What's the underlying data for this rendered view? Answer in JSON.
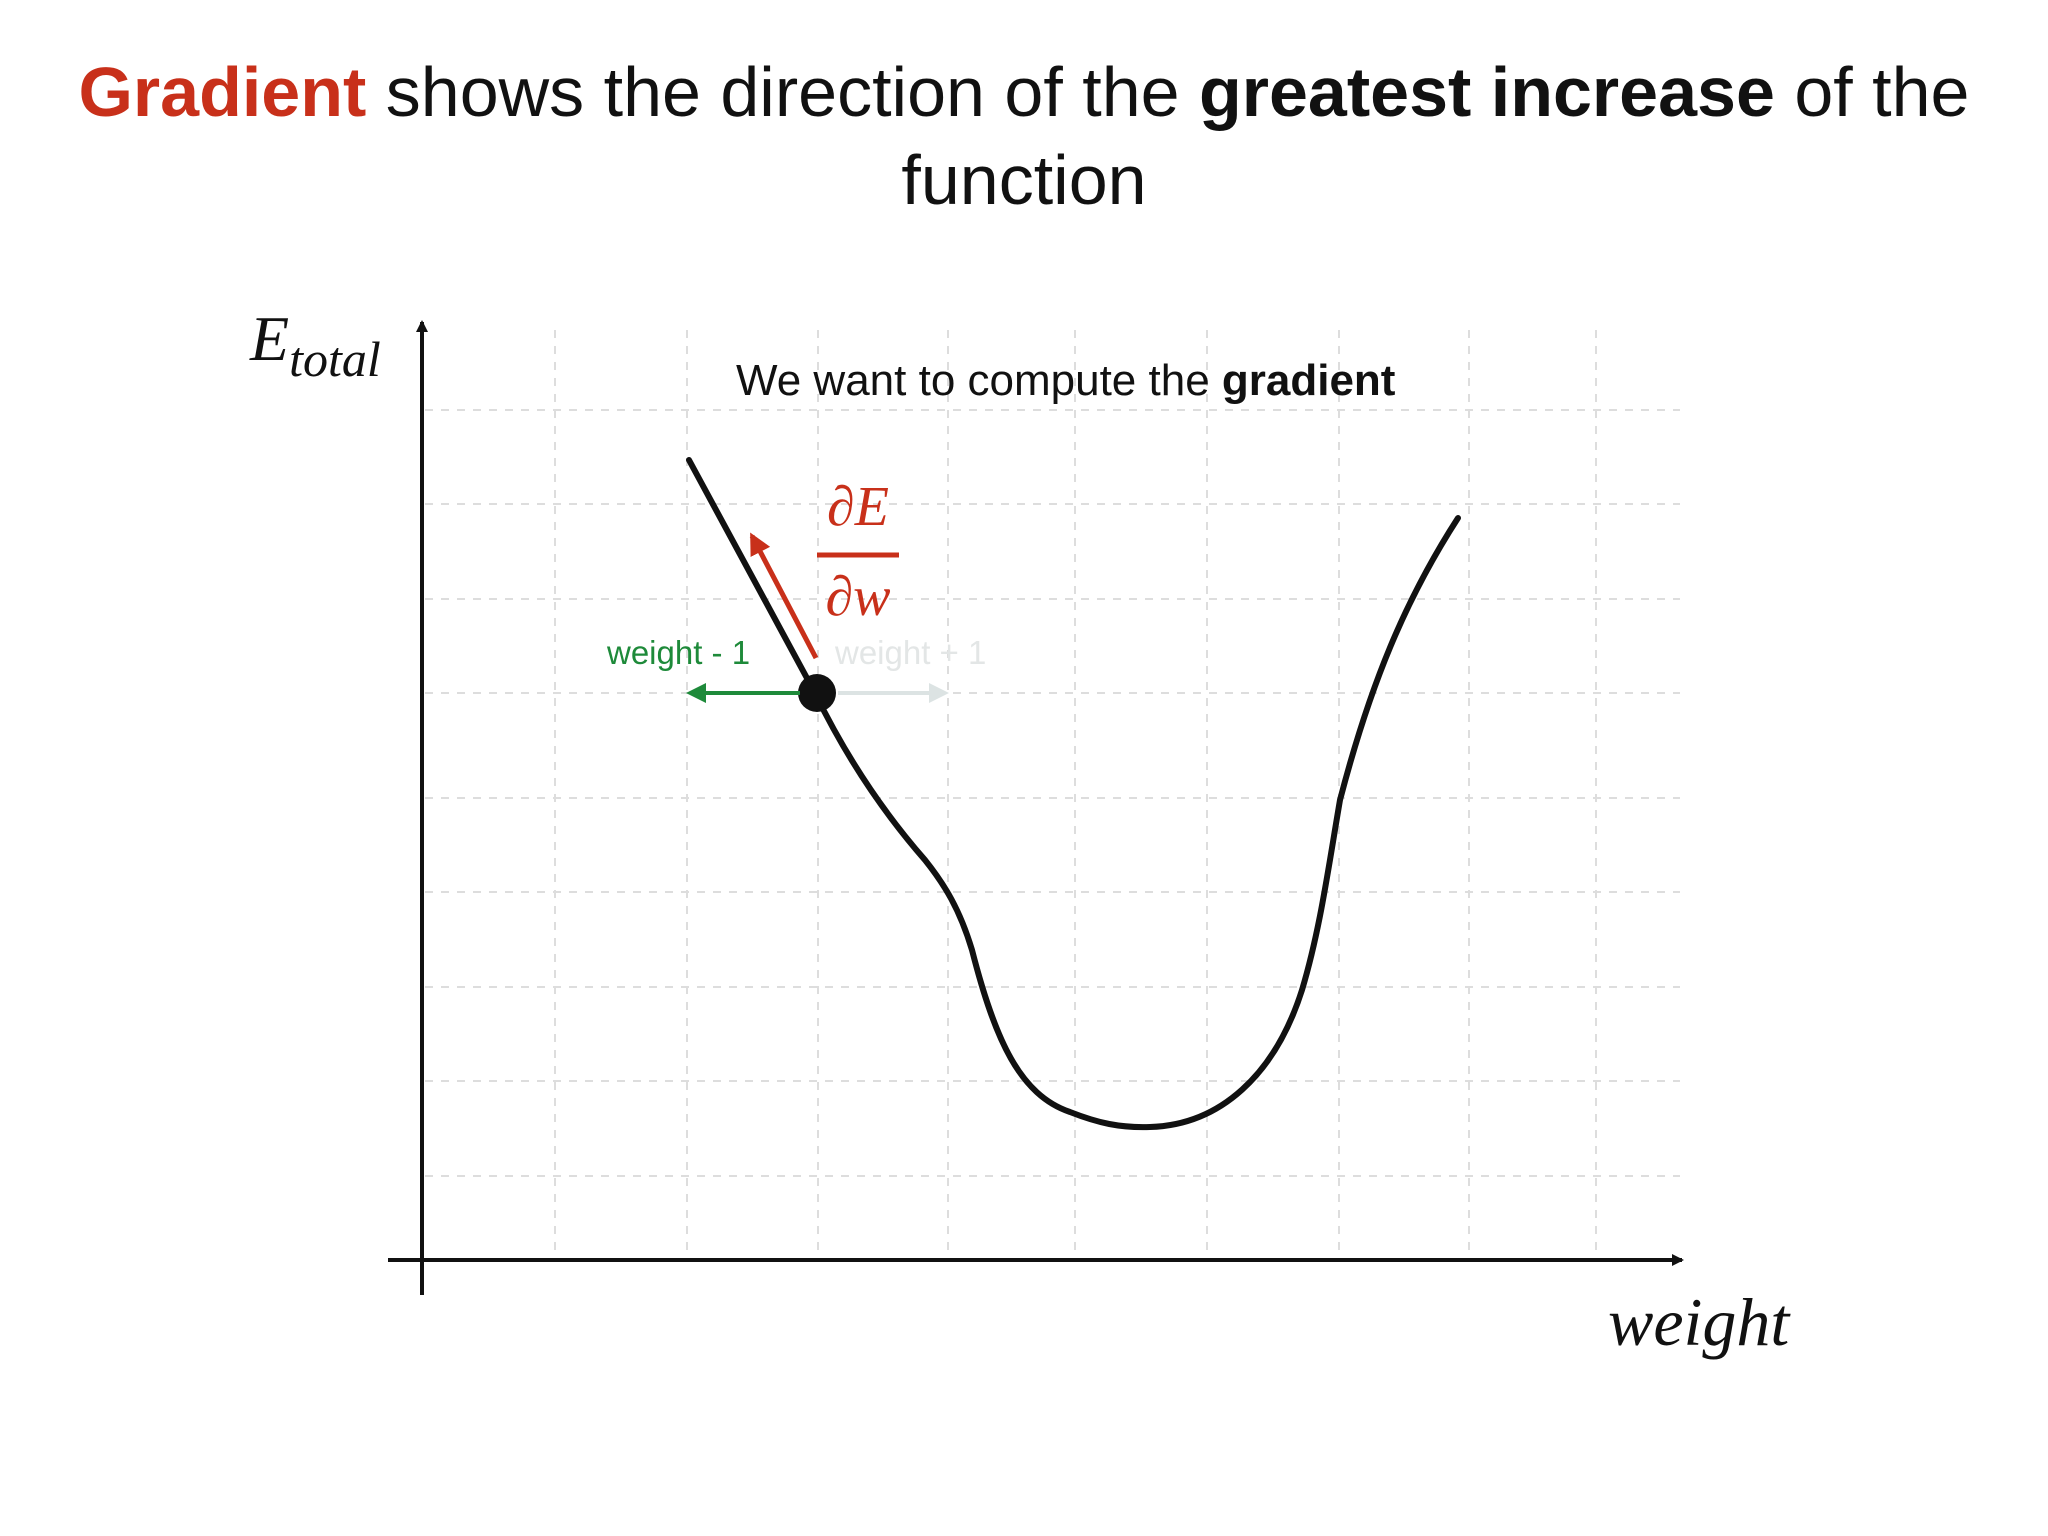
{
  "title": {
    "part1": "Gradient",
    "part2": " shows the direction of the ",
    "part3": "greatest increase",
    "part4": " of the",
    "part5": "function"
  },
  "diagram": {
    "y_axis_label_main": "E",
    "y_axis_label_sub": "total",
    "x_axis_label": "weight",
    "caption_prefix": "We want to compute the ",
    "caption_bold": "gradient",
    "derivative_numerator": "∂E",
    "derivative_denominator": "∂w",
    "left_label": "weight - 1",
    "right_label": "weight + 1"
  },
  "colors": {
    "accent_red": "#C8301A",
    "green": "#1E8A3A",
    "faded": "#E3E6E6",
    "grid": "#DDDDDD",
    "ink": "#111111"
  }
}
